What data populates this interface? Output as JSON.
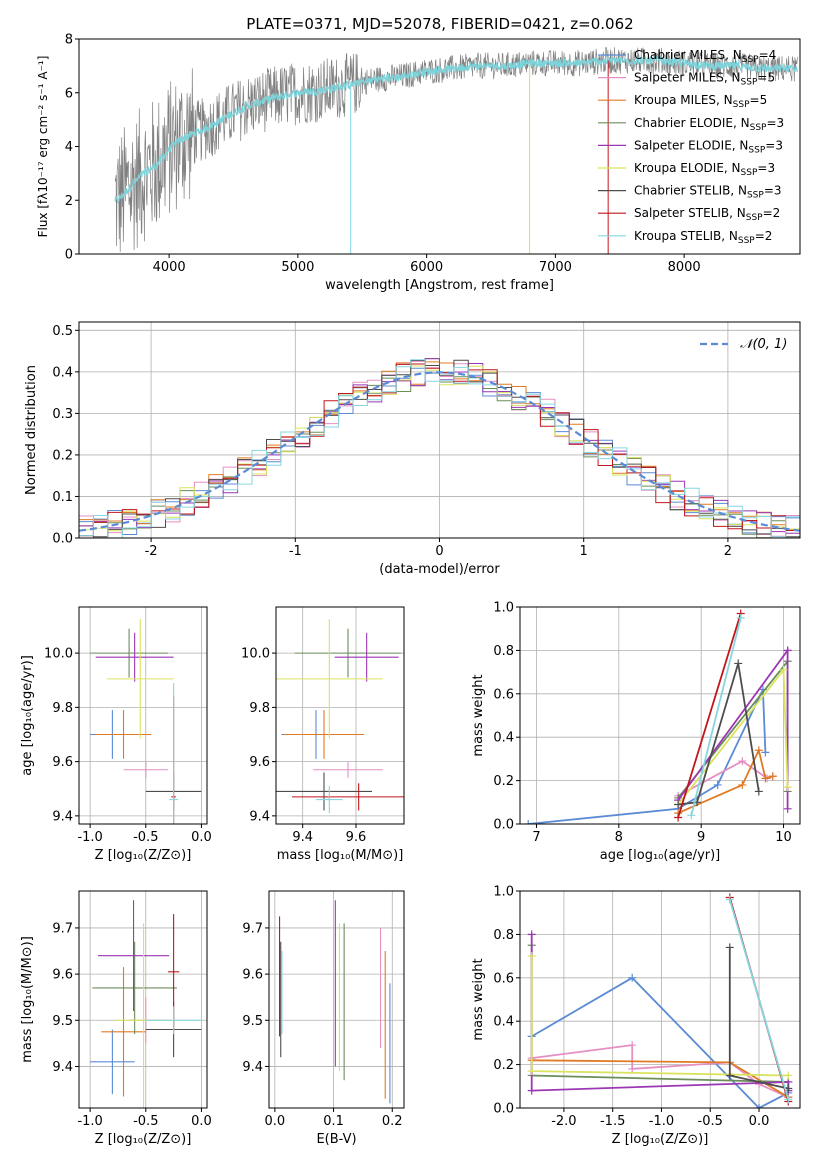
{
  "figure_title": "PLATE=0371, MJD=52078, FIBERID=0421, z=0.062",
  "colors": {
    "series": [
      "#5b8bd5",
      "#e58fc4",
      "#e07b24",
      "#6b8e5a",
      "#9b36b4",
      "#d9e35d",
      "#4d4d4d",
      "#c0161c",
      "#86d6e0"
    ],
    "data_spectrum": "#808080",
    "model_spectrum": "#7dd3da",
    "normal_curve": "#5b8bd5"
  },
  "model_names": [
    "Chabrier MILES",
    "Salpeter MILES",
    "Kroupa MILES",
    "Chabrier ELODIE",
    "Salpeter ELODIE",
    "Kroupa ELODIE",
    "Chabrier STELIB",
    "Salpeter STELIB",
    "Kroupa STELIB"
  ],
  "chart_data": [
    {
      "id": "spectrum",
      "type": "line",
      "title": "PLATE=0371, MJD=52078, FIBERID=0421, z=0.062",
      "xlabel": "wavelength [Angstrom, rest frame]",
      "ylabel": "Flux [fλ10⁻¹⁷ erg cm⁻² s⁻¹ A⁻¹]",
      "xlim": [
        3300,
        8900
      ],
      "ylim": [
        0,
        8
      ],
      "xticks": [
        4000,
        5000,
        6000,
        7000,
        8000
      ],
      "yticks": [
        0,
        2,
        4,
        6,
        8
      ],
      "legend_position": "top-right",
      "series": [
        {
          "name": "Chabrier MILES",
          "nssp": "4"
        },
        {
          "name": "Salpeter MILES",
          "nssp": "5"
        },
        {
          "name": "Kroupa MILES",
          "nssp": "5"
        },
        {
          "name": "Chabrier ELODIE",
          "nssp": "3"
        },
        {
          "name": "Salpeter ELODIE",
          "nssp": "3"
        },
        {
          "name": "Kroupa ELODIE",
          "nssp": "3"
        },
        {
          "name": "Chabrier STELIB",
          "nssp": "3"
        },
        {
          "name": "Salpeter STELIB",
          "nssp": "2"
        },
        {
          "name": "Kroupa STELIB",
          "nssp": "2"
        }
      ],
      "continuum": {
        "x": [
          3600,
          3700,
          3800,
          3900,
          4000,
          4100,
          4200,
          4300,
          4400,
          4600,
          4800,
          5000,
          5200,
          5400,
          5600,
          5800,
          6000,
          6200,
          6400,
          6600,
          6800,
          7000,
          7200,
          7400,
          7600,
          7800,
          8000,
          8200,
          8400,
          8600,
          8800
        ],
        "y": [
          2.0,
          2.5,
          3.0,
          3.3,
          3.9,
          4.3,
          4.5,
          4.7,
          5.0,
          5.5,
          5.8,
          6.0,
          6.1,
          6.3,
          6.5,
          6.6,
          6.8,
          6.9,
          7.0,
          7.0,
          7.1,
          7.1,
          7.1,
          7.2,
          7.2,
          7.2,
          7.1,
          7.0,
          7.0,
          6.9,
          6.9
        ]
      },
      "data_gaps": [
        5410,
        6800,
        7410
      ]
    },
    {
      "id": "residuals",
      "type": "histogram",
      "xlabel": "(data-model)/error",
      "ylabel": "Normed distribution",
      "xlim": [
        -2.5,
        2.5
      ],
      "ylim": [
        0,
        0.52
      ],
      "xticks": [
        -2,
        -1,
        0,
        1,
        2
      ],
      "yticks": [
        0.0,
        0.1,
        0.2,
        0.3,
        0.4,
        0.5
      ],
      "legend": "𝒩(0, 1)",
      "legend_position": "top-right",
      "bin_width": 0.1
    },
    {
      "id": "age-vs-Z",
      "type": "errorbar",
      "xlabel": "Z [log₁₀(Z/Z⊙)]",
      "ylabel": "age  [log₁₀(age/yr)]",
      "xlim": [
        -1.1,
        0.05
      ],
      "ylim": [
        9.37,
        10.17
      ],
      "xticks": [
        -1.0,
        -0.5,
        0.0
      ],
      "yticks": [
        9.4,
        9.6,
        9.8,
        10.0
      ],
      "points": [
        {
          "x": -0.8,
          "xerr": 0.2,
          "y": 9.7,
          "yerr": 0.09
        },
        {
          "x": -0.5,
          "xerr": 0.2,
          "y": 9.57,
          "yerr": 0.03
        },
        {
          "x": -0.7,
          "xerr": 0.25,
          "y": 9.7,
          "yerr": 0.09
        },
        {
          "x": -0.65,
          "xerr": 0.35,
          "y": 10.0,
          "yerr": 0.09
        },
        {
          "x": -0.6,
          "xerr": 0.35,
          "y": 9.985,
          "yerr": 0.09
        },
        {
          "x": -0.55,
          "xerr": 0.3,
          "y": 9.905,
          "yerr": 0.22
        },
        {
          "x": -0.25,
          "xerr": 0.25,
          "y": 9.49,
          "yerr": 0.07
        },
        {
          "x": -0.25,
          "xerr": 0.02,
          "y": 9.47,
          "yerr": 0.37
        },
        {
          "x": -0.25,
          "xerr": 0.04,
          "y": 9.46,
          "yerr": 0.43
        }
      ]
    },
    {
      "id": "age-vs-mass",
      "type": "errorbar",
      "xlabel": "mass [log₁₀(M/M⊙)]",
      "ylabel": "",
      "xlim": [
        9.3,
        9.78
      ],
      "ylim": [
        9.37,
        10.17
      ],
      "xticks": [
        9.4,
        9.6
      ],
      "yticks": [
        9.4,
        9.6,
        9.8,
        10.0
      ],
      "points": [
        {
          "x": 9.45,
          "xerr": 0.13,
          "y": 9.7,
          "yerr": 0.09
        },
        {
          "x": 9.57,
          "xerr": 0.13,
          "y": 9.57,
          "yerr": 0.03
        },
        {
          "x": 9.48,
          "xerr": 0.15,
          "y": 9.7,
          "yerr": 0.09
        },
        {
          "x": 9.57,
          "xerr": 0.2,
          "y": 10.0,
          "yerr": 0.09
        },
        {
          "x": 9.64,
          "xerr": 0.12,
          "y": 9.985,
          "yerr": 0.09
        },
        {
          "x": 9.5,
          "xerr": 0.2,
          "y": 9.905,
          "yerr": 0.22
        },
        {
          "x": 9.48,
          "xerr": 0.18,
          "y": 9.49,
          "yerr": 0.07
        },
        {
          "x": 9.61,
          "xerr": 0.25,
          "y": 9.47,
          "yerr": 0.05
        },
        {
          "x": 9.5,
          "xerr": 0.05,
          "y": 9.46,
          "yerr": 0.05
        }
      ]
    },
    {
      "id": "mass-weight-vs-age",
      "type": "line",
      "xlabel": "age  [log₁₀(age/yr)]",
      "ylabel": "mass weight",
      "xlim": [
        6.8,
        10.2
      ],
      "ylim": [
        0.0,
        1.0
      ],
      "xticks": [
        7,
        8,
        9,
        10
      ],
      "yticks": [
        0.0,
        0.2,
        0.4,
        0.6,
        0.8,
        1.0
      ],
      "series": [
        {
          "x": [
            6.9,
            8.72,
            9.2,
            9.75,
            9.78
          ],
          "y": [
            0.0,
            0.07,
            0.18,
            0.62,
            0.33
          ]
        },
        {
          "x": [
            8.72,
            9.5,
            9.8,
            9.87
          ],
          "y": [
            0.13,
            0.29,
            0.21,
            0.22
          ]
        },
        {
          "x": [
            8.72,
            9.5,
            9.7,
            9.78,
            9.87
          ],
          "y": [
            0.05,
            0.18,
            0.34,
            0.21,
            0.22
          ]
        },
        {
          "x": [
            8.72,
            10.05,
            10.05
          ],
          "y": [
            0.12,
            0.75,
            0.15
          ]
        },
        {
          "x": [
            8.72,
            10.05,
            10.05
          ],
          "y": [
            0.11,
            0.8,
            0.07
          ]
        },
        {
          "x": [
            8.72,
            10.0,
            10.05
          ],
          "y": [
            0.09,
            0.71,
            0.17
          ]
        },
        {
          "x": [
            8.72,
            8.95,
            9.45,
            9.7
          ],
          "y": [
            0.09,
            0.1,
            0.74,
            0.15
          ]
        },
        {
          "x": [
            8.72,
            9.48
          ],
          "y": [
            0.03,
            0.97
          ]
        },
        {
          "x": [
            8.88,
            9.48
          ],
          "y": [
            0.04,
            0.95
          ]
        }
      ]
    },
    {
      "id": "mass-vs-Z",
      "type": "errorbar",
      "xlabel": "Z [log₁₀(Z/Z⊙)]",
      "ylabel": "mass [log₁₀(M/M⊙)]",
      "xlim": [
        -1.1,
        0.05
      ],
      "ylim": [
        9.31,
        9.78
      ],
      "xticks": [
        -1.0,
        -0.5,
        0.0
      ],
      "yticks": [
        9.4,
        9.5,
        9.6,
        9.7
      ],
      "points": [
        {
          "x": -0.8,
          "xerr": 0.2,
          "y": 9.41,
          "yerr": 0.07
        },
        {
          "x": -0.5,
          "xerr": 0.15,
          "y": 9.5,
          "yerr": 0.05
        },
        {
          "x": -0.7,
          "xerr": 0.2,
          "y": 9.475,
          "yerr": 0.14
        },
        {
          "x": -0.6,
          "xerr": 0.38,
          "y": 9.57,
          "yerr": 0.1
        },
        {
          "x": -0.61,
          "xerr": 0.32,
          "y": 9.64,
          "yerr": 0.12
        },
        {
          "x": -0.52,
          "xerr": 0.25,
          "y": 9.5,
          "yerr": 0.21
        },
        {
          "x": -0.25,
          "xerr": 0.25,
          "y": 9.48,
          "yerr": 0.06
        },
        {
          "x": -0.25,
          "xerr": 0.05,
          "y": 9.605,
          "yerr": 0.125
        },
        {
          "x": -0.25,
          "xerr": 0.25,
          "y": 9.5,
          "yerr": 0.03
        }
      ]
    },
    {
      "id": "mass-vs-EBV",
      "type": "errorbar",
      "xlabel": "E(B-V)",
      "ylabel": "",
      "xlim": [
        -0.01,
        0.22
      ],
      "ylim": [
        9.31,
        9.78
      ],
      "xticks": [
        0.0,
        0.1,
        0.2
      ],
      "yticks": [
        9.4,
        9.5,
        9.6,
        9.7
      ],
      "points": [
        {
          "x": 0.196,
          "xerr": 0,
          "y": 9.45,
          "yerr": 0.13
        },
        {
          "x": 0.18,
          "xerr": 0,
          "y": 9.57,
          "yerr": 0.13
        },
        {
          "x": 0.188,
          "xerr": 0,
          "y": 9.49,
          "yerr": 0.16
        },
        {
          "x": 0.118,
          "xerr": 0,
          "y": 9.54,
          "yerr": 0.17
        },
        {
          "x": 0.103,
          "xerr": 0,
          "y": 9.58,
          "yerr": 0.18
        },
        {
          "x": 0.11,
          "xerr": 0,
          "y": 9.55,
          "yerr": 0.16
        },
        {
          "x": 0.01,
          "xerr": 0,
          "y": 9.545,
          "yerr": 0.125
        },
        {
          "x": 0.008,
          "xerr": 0,
          "y": 9.595,
          "yerr": 0.13
        },
        {
          "x": 0.012,
          "xerr": 0,
          "y": 9.56,
          "yerr": 0.09
        }
      ]
    },
    {
      "id": "mass-weight-vs-Z",
      "type": "line",
      "xlabel": "Z [log₁₀(Z/Z⊙)]",
      "ylabel": "mass weight",
      "xlim": [
        -2.45,
        0.42
      ],
      "ylim": [
        0.0,
        1.0
      ],
      "xticks": [
        -2.0,
        -1.5,
        -1.0,
        -0.5,
        0.0
      ],
      "yticks": [
        0.0,
        0.2,
        0.4,
        0.6,
        0.8,
        1.0
      ],
      "series": [
        {
          "x": [
            -2.33,
            -1.3,
            0.0,
            0.3
          ],
          "y": [
            0.33,
            0.6,
            0.0,
            0.07
          ]
        },
        {
          "x": [
            -2.33,
            -1.3,
            -1.3,
            -0.3,
            0.0,
            0.3
          ],
          "y": [
            0.23,
            0.29,
            0.18,
            0.21,
            0.11,
            0.05
          ]
        },
        {
          "x": [
            -2.33,
            -0.3,
            0.3
          ],
          "y": [
            0.22,
            0.21,
            0.05
          ]
        },
        {
          "x": [
            -2.33,
            -2.33,
            0.3,
            0.3
          ],
          "y": [
            0.75,
            0.15,
            0.12,
            0.08
          ]
        },
        {
          "x": [
            -2.33,
            -2.33,
            0.3,
            0.3
          ],
          "y": [
            0.8,
            0.08,
            0.12,
            0.08
          ]
        },
        {
          "x": [
            -2.33,
            -2.33,
            0.3
          ],
          "y": [
            0.7,
            0.17,
            0.15
          ]
        },
        {
          "x": [
            -0.3,
            -0.3,
            0.3
          ],
          "y": [
            0.74,
            0.15,
            0.09
          ]
        },
        {
          "x": [
            -0.3,
            0.3
          ],
          "y": [
            0.97,
            0.03
          ]
        },
        {
          "x": [
            -0.3,
            0.3
          ],
          "y": [
            0.96,
            0.04
          ]
        }
      ]
    }
  ]
}
